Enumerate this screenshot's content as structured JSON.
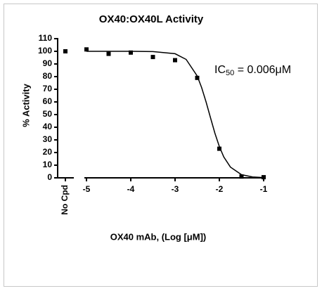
{
  "chart_data": {
    "type": "scatter",
    "title": "OX40:OX40L Activity",
    "xlabel": "OX40 mAb, (Log [μM])",
    "ylabel": "% Activity",
    "annotation": {
      "text": "IC",
      "subscript": "50",
      "rest": " = 0.006μM"
    },
    "control": {
      "label": "No Cpd",
      "value": 100
    },
    "x": [
      -5,
      -4.5,
      -4,
      -3.5,
      -3,
      -2.5,
      -2,
      -1.5,
      -1
    ],
    "values": [
      101.5,
      98,
      99,
      95.5,
      93,
      79,
      23,
      1,
      0.5
    ],
    "color": "#000000",
    "curve": {
      "x": [
        -5,
        -4,
        -3.5,
        -3,
        -2.75,
        -2.5,
        -2.4,
        -2.3,
        -2.2,
        -2.1,
        -2,
        -1.9,
        -1.75,
        -1.5,
        -1.25,
        -1
      ],
      "values": [
        100,
        100,
        99.8,
        98.1,
        93.6,
        80.5,
        71.3,
        60,
        47.5,
        35.2,
        24.7,
        16.5,
        8.5,
        2.5,
        0.7,
        0.2
      ]
    },
    "xlim": [
      -5,
      -1
    ],
    "xticks": [
      -5,
      -4,
      -3,
      -2,
      -1
    ],
    "ylim": [
      0,
      110
    ],
    "yticks": [
      0,
      10,
      20,
      30,
      40,
      50,
      60,
      70,
      80,
      90,
      100,
      110
    ]
  }
}
